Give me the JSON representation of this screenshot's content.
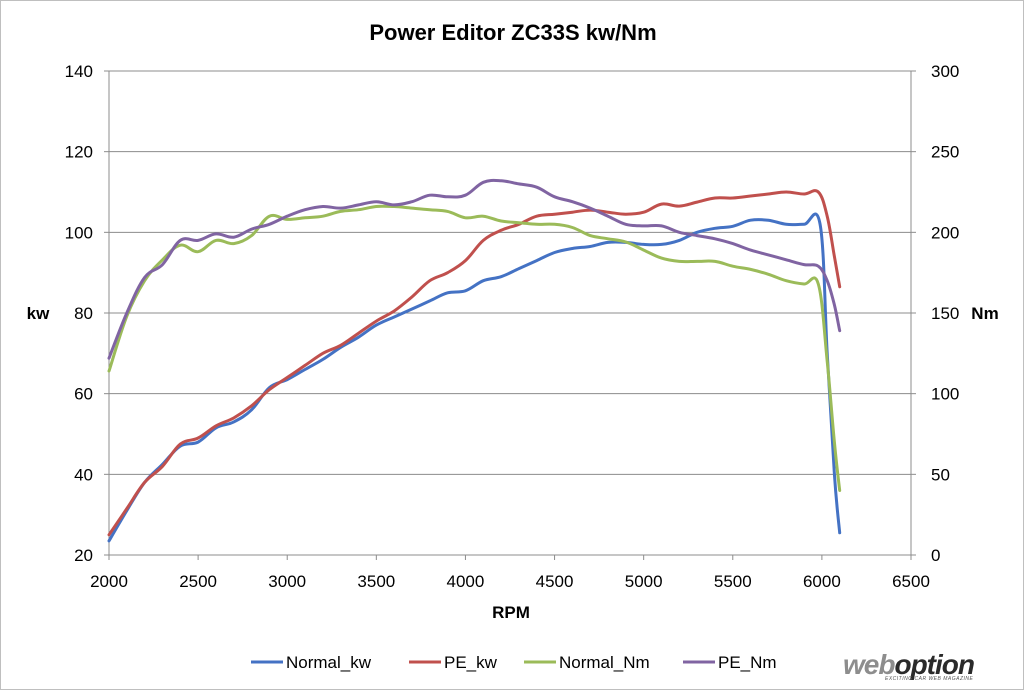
{
  "chart_data": {
    "type": "line",
    "title": "Power Editor ZC33S kw/Nm",
    "xlabel": "RPM",
    "ylabel": "kw",
    "y2label": "Nm",
    "xlim": [
      2000,
      6500
    ],
    "ylim": [
      20,
      140
    ],
    "y2lim": [
      0,
      300
    ],
    "xticks": [
      "2000",
      "2500",
      "3000",
      "3500",
      "4000",
      "4500",
      "5000",
      "5500",
      "6000",
      "6500"
    ],
    "yticks": [
      "20",
      "40",
      "60",
      "80",
      "100",
      "120",
      "140"
    ],
    "y2ticks": [
      "0",
      "50",
      "100",
      "150",
      "200",
      "250",
      "300"
    ],
    "grid": true,
    "legend": "bottom",
    "series": [
      {
        "name": "Normal_kw",
        "color": "#4472c4",
        "axis": "left",
        "points": [
          [
            2000,
            23.5
          ],
          [
            2100,
            31
          ],
          [
            2200,
            38
          ],
          [
            2300,
            42.5
          ],
          [
            2400,
            47
          ],
          [
            2500,
            48
          ],
          [
            2600,
            51.5
          ],
          [
            2700,
            53
          ],
          [
            2800,
            56
          ],
          [
            2900,
            61.5
          ],
          [
            3000,
            63.5
          ],
          [
            3100,
            66
          ],
          [
            3200,
            68.5
          ],
          [
            3300,
            71.5
          ],
          [
            3400,
            74
          ],
          [
            3500,
            77
          ],
          [
            3600,
            79
          ],
          [
            3700,
            81
          ],
          [
            3800,
            83
          ],
          [
            3900,
            85
          ],
          [
            4000,
            85.5
          ],
          [
            4100,
            88
          ],
          [
            4200,
            89
          ],
          [
            4300,
            91
          ],
          [
            4400,
            93
          ],
          [
            4500,
            95
          ],
          [
            4600,
            96
          ],
          [
            4700,
            96.5
          ],
          [
            4800,
            97.5
          ],
          [
            4900,
            97.5
          ],
          [
            5000,
            97
          ],
          [
            5100,
            97
          ],
          [
            5200,
            98
          ],
          [
            5300,
            100
          ],
          [
            5400,
            101
          ],
          [
            5500,
            101.5
          ],
          [
            5600,
            103
          ],
          [
            5700,
            103
          ],
          [
            5800,
            102
          ],
          [
            5900,
            102
          ],
          [
            5990,
            102
          ],
          [
            6030,
            70
          ],
          [
            6070,
            40
          ],
          [
            6100,
            25.5
          ]
        ]
      },
      {
        "name": "PE_kw",
        "color": "#c0504d",
        "axis": "left",
        "points": [
          [
            2000,
            25
          ],
          [
            2100,
            31.5
          ],
          [
            2200,
            38
          ],
          [
            2300,
            42
          ],
          [
            2400,
            47.5
          ],
          [
            2500,
            49
          ],
          [
            2600,
            52
          ],
          [
            2700,
            54
          ],
          [
            2800,
            57
          ],
          [
            2900,
            61
          ],
          [
            3000,
            64
          ],
          [
            3100,
            67
          ],
          [
            3200,
            70
          ],
          [
            3300,
            72
          ],
          [
            3400,
            75
          ],
          [
            3500,
            78
          ],
          [
            3600,
            80.5
          ],
          [
            3700,
            84
          ],
          [
            3800,
            88
          ],
          [
            3900,
            90
          ],
          [
            4000,
            93
          ],
          [
            4100,
            98
          ],
          [
            4200,
            100.5
          ],
          [
            4300,
            102
          ],
          [
            4400,
            104
          ],
          [
            4500,
            104.5
          ],
          [
            4600,
            105
          ],
          [
            4700,
            105.5
          ],
          [
            4800,
            105
          ],
          [
            4900,
            104.5
          ],
          [
            5000,
            105
          ],
          [
            5100,
            107
          ],
          [
            5200,
            106.5
          ],
          [
            5300,
            107.5
          ],
          [
            5400,
            108.5
          ],
          [
            5500,
            108.5
          ],
          [
            5600,
            109
          ],
          [
            5700,
            109.5
          ],
          [
            5800,
            110
          ],
          [
            5900,
            109.5
          ],
          [
            5980,
            110
          ],
          [
            6030,
            104
          ],
          [
            6070,
            94
          ],
          [
            6100,
            86.5
          ]
        ]
      },
      {
        "name": "Normal_Nm",
        "color": "#9bbb59",
        "axis": "right",
        "points": [
          [
            2000,
            114
          ],
          [
            2100,
            148
          ],
          [
            2200,
            170
          ],
          [
            2300,
            183
          ],
          [
            2400,
            192
          ],
          [
            2500,
            188
          ],
          [
            2600,
            195
          ],
          [
            2700,
            193
          ],
          [
            2800,
            198
          ],
          [
            2900,
            210
          ],
          [
            3000,
            208
          ],
          [
            3100,
            209
          ],
          [
            3200,
            210
          ],
          [
            3300,
            213
          ],
          [
            3400,
            214
          ],
          [
            3500,
            216
          ],
          [
            3600,
            216
          ],
          [
            3700,
            215
          ],
          [
            3800,
            214
          ],
          [
            3900,
            213
          ],
          [
            4000,
            209
          ],
          [
            4100,
            210
          ],
          [
            4200,
            207
          ],
          [
            4300,
            206
          ],
          [
            4400,
            205
          ],
          [
            4500,
            205
          ],
          [
            4600,
            203
          ],
          [
            4700,
            198
          ],
          [
            4800,
            196
          ],
          [
            4900,
            194
          ],
          [
            5000,
            189
          ],
          [
            5100,
            184
          ],
          [
            5200,
            182
          ],
          [
            5300,
            182
          ],
          [
            5400,
            182
          ],
          [
            5500,
            179
          ],
          [
            5600,
            177
          ],
          [
            5700,
            174
          ],
          [
            5800,
            170
          ],
          [
            5900,
            168
          ],
          [
            5980,
            168
          ],
          [
            6030,
            120
          ],
          [
            6070,
            70
          ],
          [
            6100,
            40
          ]
        ]
      },
      {
        "name": "PE_Nm",
        "color": "#8064a2",
        "axis": "right",
        "points": [
          [
            2000,
            122
          ],
          [
            2100,
            150
          ],
          [
            2200,
            172
          ],
          [
            2300,
            180
          ],
          [
            2400,
            195
          ],
          [
            2500,
            195
          ],
          [
            2600,
            199
          ],
          [
            2700,
            197
          ],
          [
            2800,
            202
          ],
          [
            2900,
            205
          ],
          [
            3000,
            210
          ],
          [
            3100,
            214
          ],
          [
            3200,
            216
          ],
          [
            3300,
            215
          ],
          [
            3400,
            217
          ],
          [
            3500,
            219
          ],
          [
            3600,
            217
          ],
          [
            3700,
            219
          ],
          [
            3800,
            223
          ],
          [
            3900,
            222
          ],
          [
            4000,
            223
          ],
          [
            4100,
            231
          ],
          [
            4200,
            232
          ],
          [
            4300,
            230
          ],
          [
            4400,
            228
          ],
          [
            4500,
            222
          ],
          [
            4600,
            219
          ],
          [
            4700,
            215
          ],
          [
            4800,
            210
          ],
          [
            4900,
            205
          ],
          [
            5000,
            204
          ],
          [
            5100,
            204
          ],
          [
            5200,
            200
          ],
          [
            5300,
            198
          ],
          [
            5400,
            196
          ],
          [
            5500,
            193
          ],
          [
            5600,
            189
          ],
          [
            5700,
            186
          ],
          [
            5800,
            183
          ],
          [
            5900,
            180
          ],
          [
            5980,
            179
          ],
          [
            6030,
            170
          ],
          [
            6070,
            155
          ],
          [
            6100,
            139
          ]
        ]
      }
    ]
  },
  "watermark": {
    "brand_main": "web",
    "brand_bold": "option",
    "tagline": "EXCITING CAR WEB MAGAZINE"
  }
}
